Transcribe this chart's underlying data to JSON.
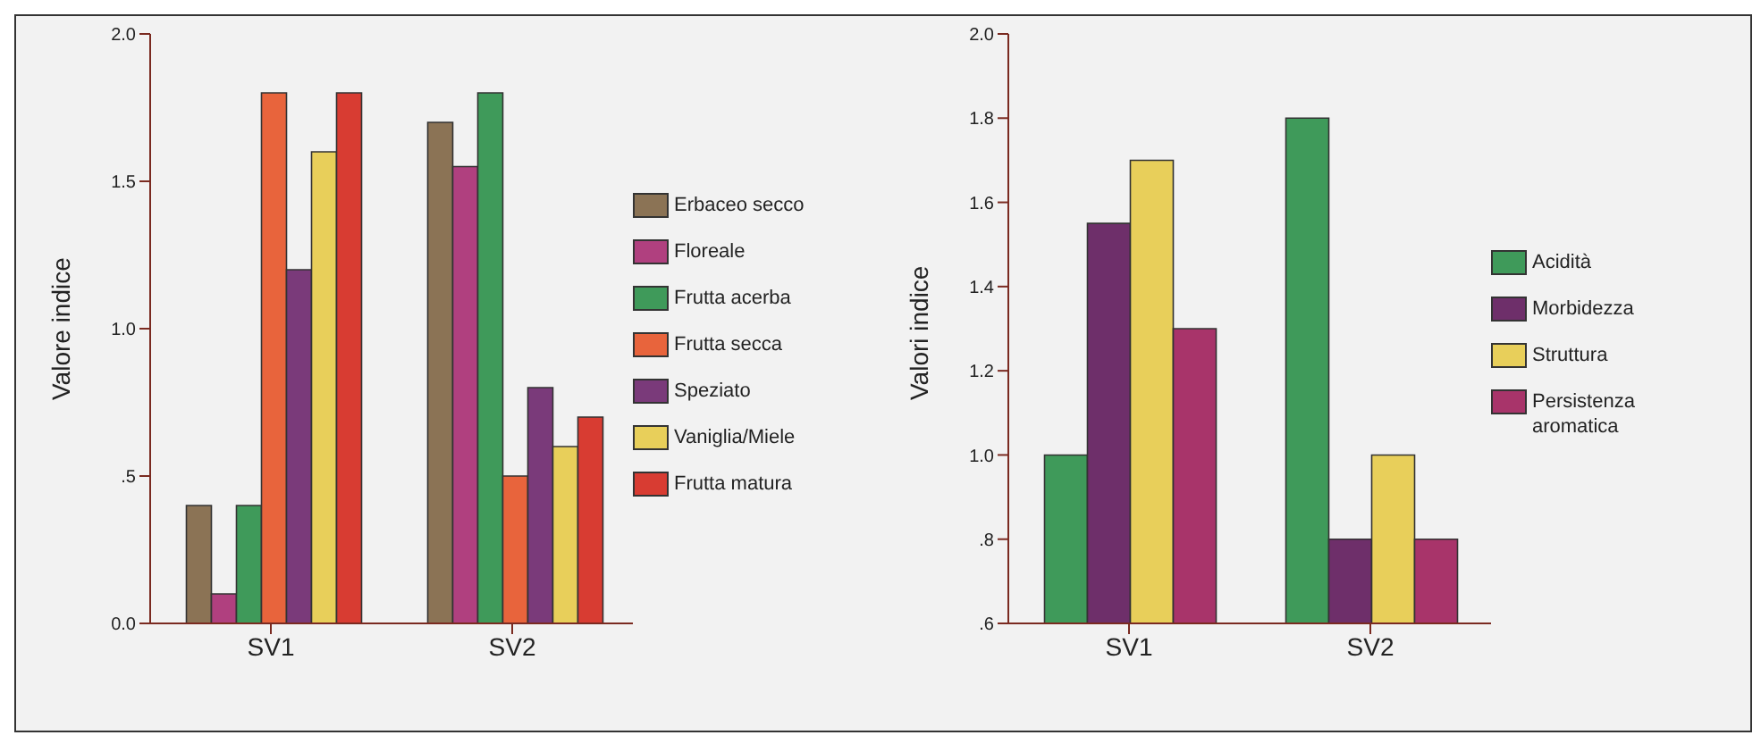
{
  "chart_data": [
    {
      "type": "bar",
      "ylabel": "Valore indice",
      "categories": [
        "SV1",
        "SV2"
      ],
      "ylim": [
        0,
        2
      ],
      "yticks": [
        {
          "value": 0,
          "label": "0.0"
        },
        {
          "value": 0.5,
          "label": ".5"
        },
        {
          "value": 1,
          "label": "1.0"
        },
        {
          "value": 1.5,
          "label": "1.5"
        },
        {
          "value": 2,
          "label": "2.0"
        }
      ],
      "grid": false,
      "legend": "right",
      "series": [
        {
          "name": "Erbaceo secco",
          "color": "#8b7355",
          "values": [
            0.4,
            1.7
          ]
        },
        {
          "name": "Floreale",
          "color": "#b0407f",
          "values": [
            0.1,
            1.55
          ]
        },
        {
          "name": "Frutta acerba",
          "color": "#3f9a5a",
          "values": [
            0.4,
            1.8
          ]
        },
        {
          "name": "Frutta secca",
          "color": "#e8643c",
          "values": [
            1.8,
            0.5
          ]
        },
        {
          "name": "Speziato",
          "color": "#7a3a7a",
          "values": [
            1.2,
            0.8
          ]
        },
        {
          "name": "Vaniglia/Miele",
          "color": "#e8cf5a",
          "values": [
            1.6,
            0.6
          ]
        },
        {
          "name": "Frutta matura",
          "color": "#d83c32",
          "values": [
            1.8,
            0.7
          ]
        }
      ]
    },
    {
      "type": "bar",
      "ylabel": "Valori indice",
      "categories": [
        "SV1",
        "SV2"
      ],
      "ylim": [
        0.6,
        2
      ],
      "yticks": [
        {
          "value": 0.6,
          "label": ".6"
        },
        {
          "value": 0.8,
          "label": ".8"
        },
        {
          "value": 1,
          "label": "1.0"
        },
        {
          "value": 1.2,
          "label": "1.2"
        },
        {
          "value": 1.4,
          "label": "1.4"
        },
        {
          "value": 1.6,
          "label": "1.6"
        },
        {
          "value": 1.8,
          "label": "1.8"
        },
        {
          "value": 2,
          "label": "2.0"
        }
      ],
      "grid": false,
      "legend": "right",
      "series": [
        {
          "name": "Acidità",
          "color": "#3f9a5a",
          "values": [
            1.0,
            1.8
          ]
        },
        {
          "name": "Morbidezza",
          "color": "#6e2f6a",
          "values": [
            1.55,
            0.8
          ]
        },
        {
          "name": "Struttura",
          "color": "#e8cf5a",
          "values": [
            1.7,
            1.0
          ]
        },
        {
          "name": "Persistenza aromatica",
          "color": "#a8346a",
          "values": [
            1.3,
            0.8
          ]
        }
      ]
    }
  ]
}
